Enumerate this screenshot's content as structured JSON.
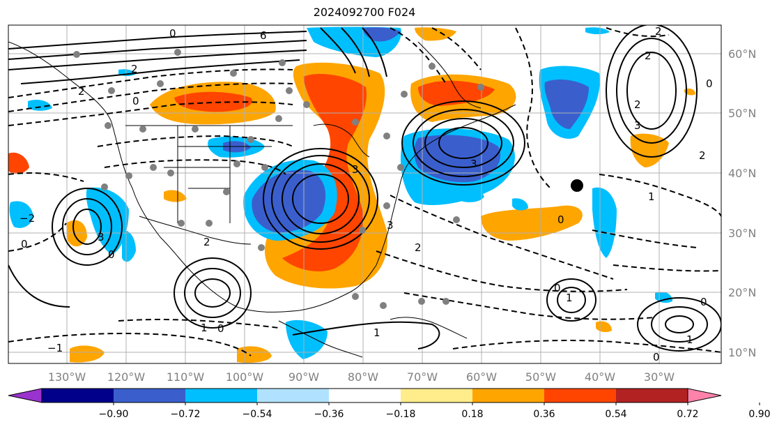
{
  "title": "2024092700 F024",
  "lon_labels": [
    "130°W",
    "120°W",
    "110°W",
    "100°W",
    "90°W",
    "80°W",
    "70°W",
    "60°W",
    "50°W",
    "40°W",
    "30°W"
  ],
  "lat_labels": [
    "60°N",
    "50°N",
    "40°N",
    "30°N",
    "20°N",
    "10°N"
  ],
  "colorbar": {
    "colors": [
      "#9a32cd",
      "#00008b",
      "#3a5fcd",
      "#00bfff",
      "#b0e2ff",
      "#ffffff",
      "#ffec8b",
      "#ffa500",
      "#ff4500",
      "#b22222",
      "#ff82ab"
    ],
    "ticks": [
      "−0.90",
      "−0.72",
      "−0.54",
      "−0.36",
      "−0.18",
      "0.18",
      "0.36",
      "0.54",
      "0.72",
      "0.90"
    ]
  },
  "contour_labels": [
    "0",
    "6",
    "2",
    "2",
    "0",
    "2",
    "0",
    "2",
    "2",
    "3",
    "3",
    "2",
    "3",
    "1",
    "0",
    "−2",
    "0",
    "3",
    "2",
    "1",
    "0",
    "1",
    "0",
    "−1",
    "3",
    "2",
    "0",
    "1",
    "1",
    "0",
    "0"
  ],
  "colors": {
    "land_line": "#000000",
    "grid": "#b0b0b0",
    "station_dots": "#808080"
  }
}
